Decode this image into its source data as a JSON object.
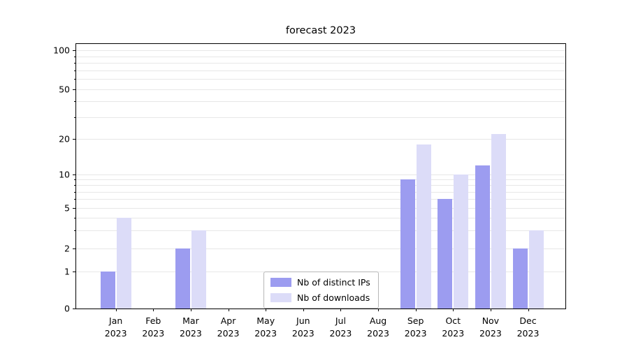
{
  "title": "forecast 2023",
  "chart_data": {
    "type": "bar",
    "title": "forecast 2023",
    "categories": [
      "Jan",
      "Feb",
      "Mar",
      "Apr",
      "May",
      "Jun",
      "Jul",
      "Aug",
      "Sep",
      "Oct",
      "Nov",
      "Dec"
    ],
    "category_year": "2023",
    "series": [
      {
        "name": "Nb of distinct IPs",
        "color": "#9c9cf0",
        "values": [
          1,
          0,
          2,
          0,
          0,
          0,
          0,
          0,
          9,
          6,
          12,
          2
        ]
      },
      {
        "name": "Nb of downloads",
        "color": "#dcdcf8",
        "values": [
          4,
          0,
          3,
          0,
          0,
          0,
          0,
          0,
          18,
          10,
          22,
          3
        ]
      }
    ],
    "yscale": "symlog",
    "ylim": [
      0,
      110
    ],
    "yticks": [
      0,
      1,
      2,
      5,
      10,
      20,
      50,
      100
    ],
    "minor_gridlines": [
      3,
      4,
      6,
      7,
      8,
      9,
      30,
      40,
      60,
      70,
      80,
      90
    ],
    "grid": true,
    "legend_position": "lower center",
    "xlabel": "",
    "ylabel": ""
  },
  "colors": {
    "grid": "#e7e7e7",
    "axis": "#000000",
    "background": "#ffffff"
  }
}
